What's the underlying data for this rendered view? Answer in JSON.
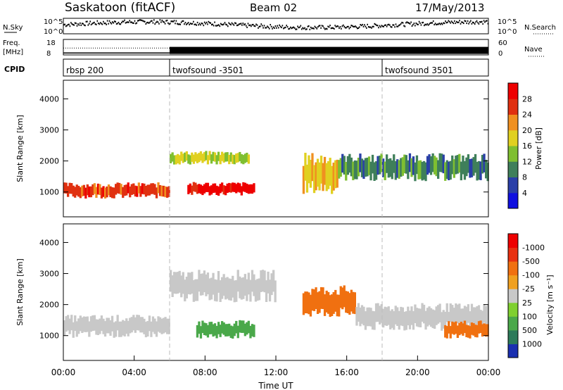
{
  "header": {
    "station": "Saskatoon (fitACF)",
    "beam": "Beam 02",
    "date": "17/May/2013"
  },
  "chart_data": [
    {
      "type": "line",
      "title": "",
      "left_label": "N.Sky",
      "right_label": "N.Search",
      "left_ticks": [
        "10^5",
        "10^0"
      ],
      "right_ticks": [
        "10^5",
        "10^0"
      ]
    },
    {
      "type": "line",
      "left_label_line1": "Freq.",
      "left_label_line2": "[MHz]",
      "right_label": "Nave",
      "left_ticks": [
        "18",
        "8"
      ],
      "right_ticks": [
        "60",
        "0"
      ],
      "freq_segments": [
        {
          "from_h": 0.0,
          "to_h": 6.0,
          "freq_mhz": 10.9
        },
        {
          "from_h": 6.0,
          "to_h": 24.0,
          "freq_mhz": 11.2
        }
      ]
    },
    {
      "type": "table",
      "label": "CPID",
      "segments": [
        {
          "name": "rbsp 200",
          "start_h": 0.0
        },
        {
          "name": "twofsound -3501",
          "start_h": 6.0
        },
        {
          "name": "twofsound 3501",
          "start_h": 18.0
        }
      ]
    },
    {
      "type": "heatmap",
      "ylabel": "Slant Range [km]",
      "yticks": [
        1000,
        2000,
        3000,
        4000
      ],
      "ylim": [
        200,
        4600
      ],
      "xlim": [
        0,
        24
      ],
      "colorbar": {
        "label": "Power [dB]",
        "ticks": [
          "4",
          "8",
          "12",
          "16",
          "20",
          "24",
          "28"
        ],
        "colors": [
          "#1010e0",
          "#2a3fa8",
          "#3f7f5a",
          "#7fbf30",
          "#e0d020",
          "#f09020",
          "#e03010",
          "#ee0000"
        ]
      },
      "echo_bands": [
        {
          "from_h": 0.0,
          "to_h": 6.0,
          "center_km": 1050,
          "width_km": 350,
          "value": 26
        },
        {
          "from_h": 6.0,
          "to_h": 10.5,
          "center_km": 2100,
          "width_km": 300,
          "value": 16
        },
        {
          "from_h": 7.0,
          "to_h": 10.8,
          "center_km": 1100,
          "width_km": 300,
          "value": 30
        },
        {
          "from_h": 13.5,
          "to_h": 15.5,
          "center_km": 1600,
          "width_km": 900,
          "value": 20
        },
        {
          "from_h": 15.5,
          "to_h": 24.0,
          "center_km": 1800,
          "width_km": 600,
          "value": 10
        }
      ]
    },
    {
      "type": "heatmap",
      "ylabel": "Slant Range [km]",
      "yticks": [
        1000,
        2000,
        3000,
        4000
      ],
      "ylim": [
        200,
        4600
      ],
      "xlim": [
        0,
        24
      ],
      "xticks": [
        "00:00",
        "04:00",
        "08:00",
        "12:00",
        "16:00",
        "20:00",
        "00:00"
      ],
      "xlabel": "Time UT",
      "colorbar": {
        "label": "Velocity [m s⁻¹]",
        "ticks": [
          "1000",
          "500",
          "100",
          "25",
          "-25",
          "-100",
          "-500",
          "-1000"
        ],
        "colors": [
          "#1a2fb0",
          "#2c7a5a",
          "#4aa84a",
          "#7fd030",
          "#c8c8c8",
          "#f0a020",
          "#f07010",
          "#e83010",
          "#ee0000"
        ]
      },
      "echo_bands": [
        {
          "from_h": 0.0,
          "to_h": 6.0,
          "center_km": 1300,
          "width_km": 500,
          "value": 0
        },
        {
          "from_h": 6.0,
          "to_h": 12.0,
          "center_km": 2600,
          "width_km": 700,
          "value": 0
        },
        {
          "from_h": 7.5,
          "to_h": 10.8,
          "center_km": 1200,
          "width_km": 400,
          "value": 150
        },
        {
          "from_h": 13.5,
          "to_h": 16.5,
          "center_km": 2100,
          "width_km": 700,
          "value": -200
        },
        {
          "from_h": 16.5,
          "to_h": 24.0,
          "center_km": 1600,
          "width_km": 600,
          "value": 0
        },
        {
          "from_h": 21.5,
          "to_h": 24.0,
          "center_km": 1200,
          "width_km": 400,
          "value": -300
        }
      ]
    }
  ]
}
